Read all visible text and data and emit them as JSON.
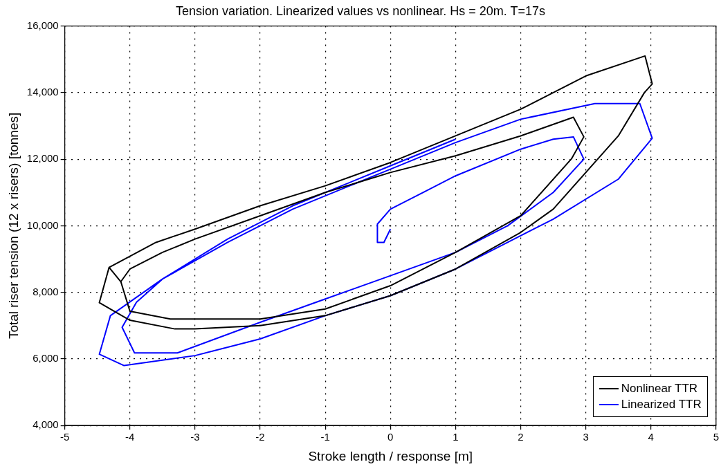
{
  "chart_data": {
    "type": "line",
    "title": "Tension variation. Linearized values vs nonlinear. Hs = 20m. T=17s",
    "xlabel": "Stroke length / response [m]",
    "ylabel": "Total riser tension (12 x risers) [tonnes]",
    "xlim": [
      -5,
      5
    ],
    "xticks": [
      -5,
      -4,
      -3,
      -2,
      -1,
      0,
      1,
      2,
      3,
      4,
      5
    ],
    "ylim": [
      4000,
      16000
    ],
    "yticks": [
      {
        "value": 4000,
        "label": "4,000"
      },
      {
        "value": 6000,
        "label": "6,000"
      },
      {
        "value": 8000,
        "label": "8,000"
      },
      {
        "value": 10000,
        "label": "10,000"
      },
      {
        "value": 12000,
        "label": "12,000"
      },
      {
        "value": 14000,
        "label": "14,000"
      },
      {
        "value": 16000,
        "label": "16,000"
      }
    ],
    "grid": true,
    "legend": "bottom right",
    "marker": "none",
    "line_style": "solid",
    "series": [
      {
        "name": "Nonlinear TTR",
        "color": "#000000",
        "x": [
          -4.14,
          -4.0,
          -3.38,
          -2,
          -1,
          0,
          1,
          2,
          2.78,
          2.97,
          2.81,
          2,
          1,
          0,
          -1,
          -2,
          -3,
          -3.5,
          -4.0,
          -4.14,
          -4.32,
          -4.47,
          -4.0,
          -3.31,
          -3.0,
          -2,
          -1,
          0,
          1,
          2,
          2.5,
          3.5,
          3.9,
          4.02,
          3.91,
          3,
          2,
          1,
          0,
          -1,
          -2,
          -3,
          -3.6,
          -4.32
        ],
        "values": [
          8320,
          7430,
          7200,
          7200,
          7500,
          8200,
          9200,
          10300,
          12010,
          12670,
          13260,
          12700,
          12100,
          11600,
          11000,
          10300,
          9600,
          9200,
          8700,
          8320,
          8750,
          7690,
          7160,
          6900,
          6900,
          7000,
          7300,
          7900,
          8700,
          9800,
          10500,
          12700,
          14000,
          14260,
          15100,
          14500,
          13500,
          12700,
          11900,
          11200,
          10600,
          9900,
          9500,
          8750
        ]
      },
      {
        "name": "Linearized TTR",
        "color": "#0000ff",
        "x": [
          0.0,
          -0.1,
          -0.2,
          -0.2,
          0,
          0.5,
          1,
          2,
          2.5,
          2.81,
          2.97,
          2.5,
          1.8,
          1,
          0,
          -1,
          -2,
          -3.27,
          -3.93,
          -4.12,
          -3.9,
          -3.5,
          -2.5,
          -1.5,
          0,
          1,
          2,
          3.14,
          3.83,
          4.02,
          3.5,
          2.5,
          1,
          0,
          -1,
          -2,
          -3,
          -4.09,
          -4.47,
          -4.3,
          -3.5,
          -2.5,
          -1.5,
          0,
          1
        ],
        "values": [
          9900,
          9500,
          9500,
          10050,
          10500,
          11000,
          11500,
          12300,
          12600,
          12670,
          12000,
          11000,
          10000,
          9200,
          8500,
          7800,
          7100,
          6180,
          6180,
          6950,
          7700,
          8400,
          9500,
          10500,
          11700,
          12500,
          13200,
          13670,
          13670,
          12630,
          11400,
          10200,
          8700,
          7900,
          7300,
          6600,
          6100,
          5800,
          6140,
          7300,
          8400,
          9600,
          10600,
          11800,
          12600
        ]
      }
    ]
  }
}
